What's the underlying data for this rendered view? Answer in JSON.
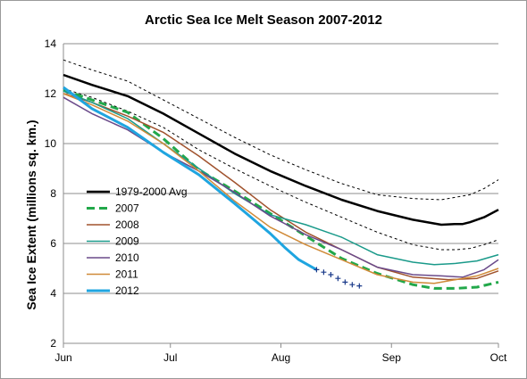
{
  "chart_data": {
    "type": "line",
    "title": "Arctic Sea Ice Melt Season 2007-2012",
    "ylabel": "Sea Ice Extent (millions sq. km.)",
    "xlabel": "",
    "x_axis": "day of year",
    "xlim": [
      152,
      274
    ],
    "ylim": [
      2,
      14
    ],
    "y_ticks": [
      2,
      4,
      6,
      8,
      10,
      12,
      14
    ],
    "x_ticks": [
      {
        "label": "Jun",
        "day": 152
      },
      {
        "label": "Jul",
        "day": 182
      },
      {
        "label": "Aug",
        "day": 213
      },
      {
        "label": "Sep",
        "day": 244
      },
      {
        "label": "Oct",
        "day": 274
      }
    ],
    "grid": "horizontal",
    "legend_position": "left-center",
    "series": [
      {
        "name": "1979-2000 Avg",
        "color": "#000000",
        "style": "solid",
        "width": 2.5,
        "x": [
          152,
          160,
          170,
          180,
          190,
          200,
          210,
          220,
          230,
          240,
          250,
          258,
          262,
          264,
          266,
          270,
          274
        ],
        "y": [
          12.75,
          12.35,
          11.9,
          11.2,
          10.4,
          9.6,
          8.9,
          8.3,
          7.75,
          7.3,
          6.95,
          6.75,
          6.78,
          6.78,
          6.85,
          7.05,
          7.35
        ]
      },
      {
        "name": "Avg upper bound",
        "color": "#000000",
        "style": "dotted",
        "width": 1,
        "legend": false,
        "x": [
          152,
          160,
          170,
          180,
          190,
          200,
          210,
          220,
          230,
          240,
          250,
          258,
          262,
          266,
          270,
          274
        ],
        "y": [
          13.35,
          12.95,
          12.5,
          11.75,
          11.0,
          10.25,
          9.55,
          8.95,
          8.4,
          7.95,
          7.8,
          7.75,
          7.85,
          7.95,
          8.2,
          8.55
        ]
      },
      {
        "name": "Avg lower bound",
        "color": "#000000",
        "style": "dotted",
        "width": 1,
        "legend": false,
        "x": [
          152,
          160,
          170,
          180,
          190,
          200,
          210,
          220,
          230,
          240,
          250,
          258,
          262,
          266,
          270,
          274
        ],
        "y": [
          12.2,
          11.85,
          11.3,
          10.65,
          9.75,
          9.0,
          8.3,
          7.65,
          7.05,
          6.45,
          5.95,
          5.75,
          5.75,
          5.8,
          5.95,
          6.15
        ]
      },
      {
        "name": "2007",
        "color": "#22a84a",
        "style": "dashed",
        "width": 3,
        "x": [
          152,
          160,
          170,
          180,
          190,
          200,
          210,
          220,
          230,
          240,
          250,
          256,
          262,
          268,
          274
        ],
        "y": [
          12.15,
          11.75,
          11.25,
          10.2,
          8.95,
          8.1,
          7.2,
          6.3,
          5.4,
          4.8,
          4.35,
          4.2,
          4.2,
          4.25,
          4.45
        ]
      },
      {
        "name": "2008",
        "color": "#a0522d",
        "style": "solid",
        "width": 1.5,
        "x": [
          152,
          160,
          170,
          180,
          190,
          200,
          210,
          220,
          230,
          240,
          250,
          260,
          268,
          274
        ],
        "y": [
          12.0,
          11.65,
          11.1,
          10.45,
          9.5,
          8.45,
          7.35,
          6.45,
          5.75,
          5.05,
          4.65,
          4.55,
          4.6,
          4.9
        ]
      },
      {
        "name": "2009",
        "color": "#1a9a8a",
        "style": "solid",
        "width": 1.5,
        "x": [
          152,
          160,
          170,
          180,
          190,
          200,
          210,
          220,
          230,
          240,
          250,
          256,
          262,
          268,
          274
        ],
        "y": [
          12.1,
          11.65,
          11.0,
          10.0,
          9.0,
          8.0,
          7.15,
          6.75,
          6.25,
          5.55,
          5.25,
          5.15,
          5.2,
          5.3,
          5.55
        ]
      },
      {
        "name": "2010",
        "color": "#6a4a8a",
        "style": "solid",
        "width": 1.5,
        "x": [
          152,
          160,
          170,
          180,
          190,
          200,
          210,
          220,
          230,
          240,
          250,
          258,
          264,
          270,
          274
        ],
        "y": [
          11.85,
          11.2,
          10.55,
          9.65,
          8.9,
          8.05,
          7.1,
          6.35,
          5.75,
          5.05,
          4.75,
          4.7,
          4.65,
          4.95,
          5.35
        ]
      },
      {
        "name": "2011",
        "color": "#d08a38",
        "style": "solid",
        "width": 1.5,
        "x": [
          152,
          160,
          170,
          180,
          190,
          200,
          210,
          220,
          230,
          240,
          250,
          256,
          262,
          268,
          274
        ],
        "y": [
          12.0,
          11.55,
          10.9,
          10.0,
          8.9,
          7.7,
          6.65,
          5.95,
          5.35,
          4.75,
          4.45,
          4.4,
          4.55,
          4.7,
          5.0
        ]
      },
      {
        "name": "2012",
        "color": "#1fa5e0",
        "style": "solid",
        "width": 3,
        "x": [
          152,
          160,
          170,
          180,
          190,
          200,
          205,
          210,
          214,
          218,
          223
        ],
        "y": [
          12.25,
          11.4,
          10.65,
          9.65,
          8.75,
          7.6,
          7.0,
          6.4,
          5.85,
          5.35,
          4.95
        ]
      },
      {
        "name": "2012 latest",
        "color": "#1a3a8a",
        "style": "cross-markers",
        "width": 1,
        "legend": false,
        "x": [
          223,
          225,
          227,
          229,
          231,
          233,
          235
        ],
        "y": [
          4.95,
          4.85,
          4.75,
          4.6,
          4.45,
          4.35,
          4.3
        ]
      }
    ],
    "legend": [
      "1979-2000 Avg",
      "2007",
      "2008",
      "2009",
      "2010",
      "2011",
      "2012"
    ]
  }
}
